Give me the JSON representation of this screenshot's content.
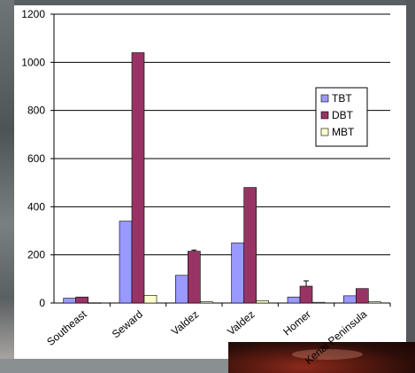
{
  "chart_data": {
    "type": "bar",
    "categories": [
      "Southeast",
      "Seward",
      "Valdez",
      "Valdez",
      "Homer",
      "Kenai Peninsula"
    ],
    "series": [
      {
        "name": "TBT",
        "values": [
          20,
          340,
          115,
          250,
          25,
          30
        ],
        "errors": [
          0,
          0,
          0,
          0,
          0,
          0
        ],
        "color": "#9999ff"
      },
      {
        "name": "DBT",
        "values": [
          25,
          1040,
          215,
          480,
          70,
          60
        ],
        "errors": [
          0,
          0,
          5,
          0,
          22,
          0
        ],
        "color": "#993366"
      },
      {
        "name": "MBT",
        "values": [
          1,
          32,
          5,
          10,
          3,
          5
        ],
        "errors": [
          0,
          0,
          0,
          0,
          0,
          0
        ],
        "color": "#ffffcc"
      }
    ],
    "title": "",
    "xlabel": "",
    "ylabel": "",
    "ylim": [
      0,
      1200
    ],
    "yticks": [
      0,
      200,
      400,
      600,
      800,
      1000,
      1200
    ],
    "grid": true,
    "legend_position": "right"
  }
}
